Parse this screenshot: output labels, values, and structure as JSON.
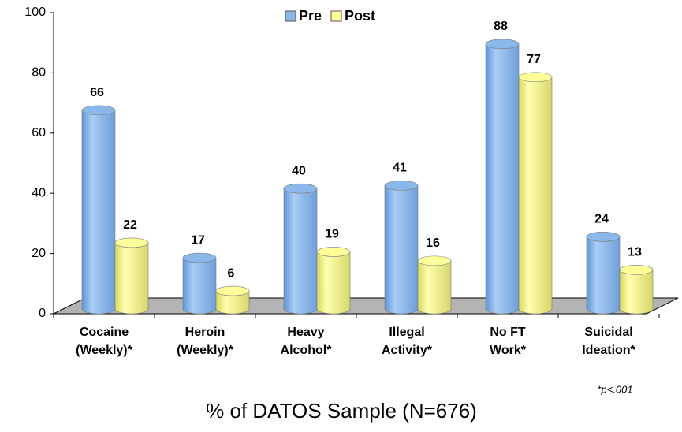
{
  "chart_data": {
    "type": "bar",
    "categories": [
      [
        "Cocaine",
        "(Weekly)*"
      ],
      [
        "Heroin",
        "(Weekly)*"
      ],
      [
        "Heavy",
        "Alcohol*"
      ],
      [
        "Illegal",
        "Activity*"
      ],
      [
        "No FT",
        "Work*"
      ],
      [
        "Suicidal",
        "Ideation*"
      ]
    ],
    "series": [
      {
        "name": "Pre",
        "color": "#8ab8ea",
        "values": [
          66,
          17,
          40,
          41,
          88,
          24
        ]
      },
      {
        "name": "Post",
        "color": "#ffff99",
        "values": [
          22,
          6,
          19,
          16,
          77,
          13
        ]
      }
    ],
    "ylim": [
      0,
      100
    ],
    "yticks": [
      0,
      20,
      40,
      60,
      80,
      100
    ],
    "xlabel": "% of DATOS Sample (N=676)",
    "annotation": "*p<.001",
    "legend": "top"
  }
}
